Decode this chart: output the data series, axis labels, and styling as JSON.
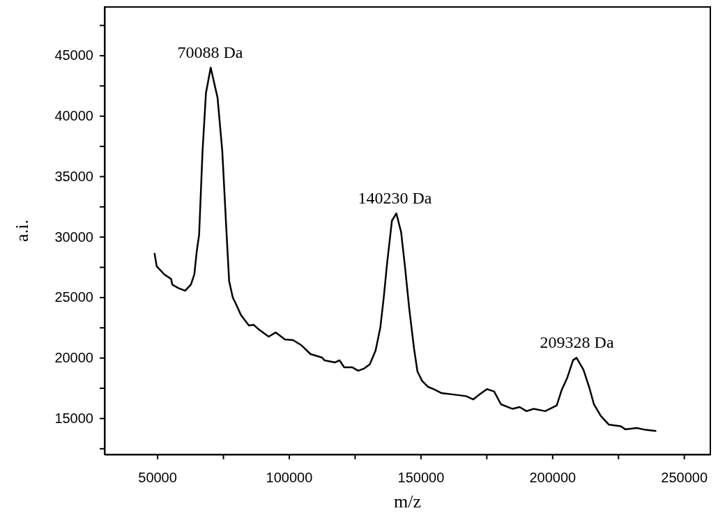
{
  "chart_data": {
    "type": "line",
    "xlabel": "m/z",
    "ylabel": "a.i.",
    "xlim": [
      30000,
      260000
    ],
    "xticks": [
      50000,
      {
        "value": 75000,
        "label": null
      },
      100000,
      {
        "value": 125000,
        "label": null
      },
      150000,
      {
        "value": 175000,
        "label": null
      },
      200000,
      {
        "value": 225000,
        "label": null
      },
      250000
    ],
    "ylim": [
      12000,
      49000
    ],
    "yticks": [
      {
        "value": 12500,
        "label": null
      },
      15000,
      {
        "value": 17500,
        "label": null
      },
      20000,
      {
        "value": 22500,
        "label": null
      },
      25000,
      {
        "value": 27500,
        "label": null
      },
      30000,
      {
        "value": 32500,
        "label": null
      },
      35000,
      {
        "value": 37500,
        "label": null
      },
      40000,
      {
        "value": 42500,
        "label": null
      },
      45000,
      {
        "value": 47500,
        "label": null
      }
    ],
    "marker": "none",
    "line_style": "solid",
    "series": [
      {
        "color": "#000000",
        "x": [
          49000,
          49800,
          52600,
          55300,
          55700,
          57900,
          60600,
          62800,
          64100,
          65000,
          65900,
          67200,
          68500,
          70300,
          72900,
          74700,
          76300,
          77300,
          78700,
          80000,
          81800,
          84800,
          86600,
          88700,
          92300,
          95000,
          98500,
          101600,
          104600,
          108200,
          112600,
          113500,
          117500,
          119200,
          121000,
          124100,
          126300,
          128500,
          130700,
          132900,
          134700,
          136000,
          137300,
          139100,
          140800,
          142600,
          143900,
          145700,
          147500,
          148800,
          150600,
          152800,
          155000,
          158000,
          163800,
          167300,
          170000,
          172100,
          175200,
          177900,
          180500,
          184900,
          187600,
          190200,
          192900,
          197300,
          201700,
          203500,
          205700,
          207900,
          209200,
          211800,
          214100,
          215800,
          218400,
          221500,
          226000,
          227700,
          232100,
          235200,
          239200
        ],
        "values": [
          28600,
          27550,
          26900,
          26500,
          26050,
          25770,
          25540,
          26060,
          26900,
          28800,
          30170,
          37080,
          41880,
          43990,
          41500,
          37080,
          30360,
          26330,
          24970,
          24390,
          23520,
          22660,
          22720,
          22310,
          21740,
          22090,
          21510,
          21450,
          21050,
          20300,
          20010,
          19780,
          19610,
          19780,
          19200,
          19200,
          18920,
          19100,
          19450,
          20590,
          22490,
          24980,
          27860,
          31320,
          31930,
          30380,
          27860,
          24020,
          20760,
          18860,
          18070,
          17590,
          17400,
          17070,
          16920,
          16820,
          16550,
          16920,
          17400,
          17210,
          16150,
          15770,
          15920,
          15580,
          15770,
          15580,
          16060,
          17300,
          18360,
          19800,
          19990,
          19030,
          17490,
          16150,
          15190,
          14460,
          14330,
          14080,
          14190,
          14040,
          13940
        ]
      }
    ],
    "annotations": [
      {
        "text": "70088 Da",
        "x": 70088,
        "y": 43990
      },
      {
        "text": "140230 Da",
        "x": 140230,
        "y": 31930
      },
      {
        "text": "209328 Da",
        "x": 209328,
        "y": 19990
      }
    ]
  }
}
